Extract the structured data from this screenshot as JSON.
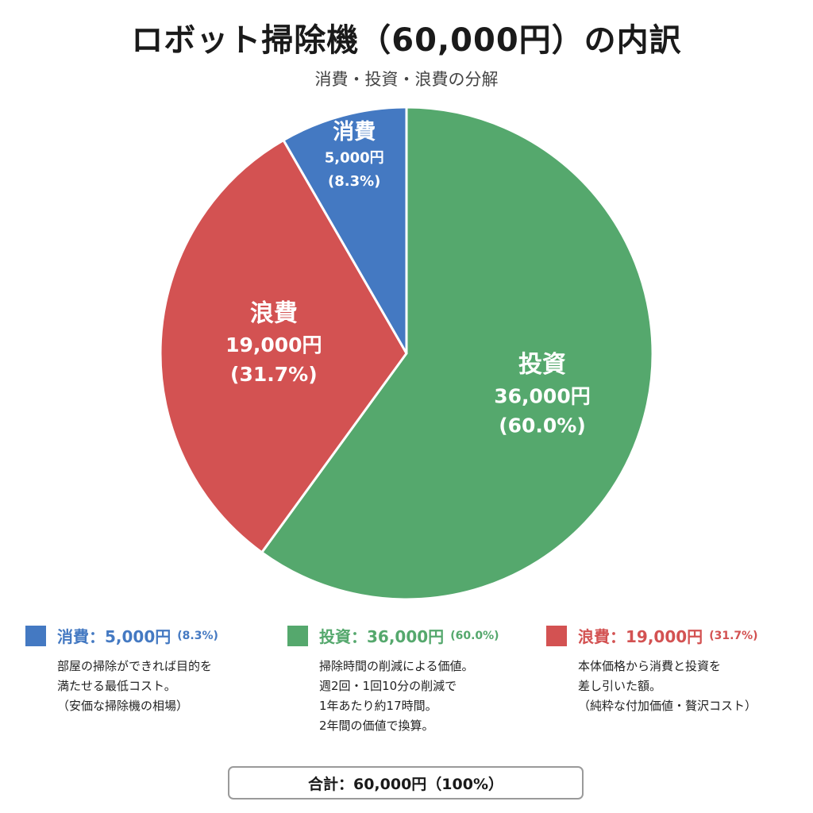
{
  "header": {
    "title": "ロボット掃除機（60,000円）の内訳",
    "subtitle": "消費・投資・浪費の分解"
  },
  "chart_data": {
    "type": "pie",
    "title": "ロボット掃除機（60,000円）の内訳",
    "subtitle": "消費・投資・浪費の分解",
    "unit": "円",
    "total": 60000,
    "start_angle_deg": 0,
    "direction": "clockwise",
    "slices": [
      {
        "name": "投資",
        "value": 36000,
        "value_label": "36,000円",
        "percent": 60.0,
        "percent_label": "(60.0%)",
        "color": "#55a86d"
      },
      {
        "name": "浪費",
        "value": 19000,
        "value_label": "19,000円",
        "percent": 31.7,
        "percent_label": "(31.7%)",
        "color": "#d35252"
      },
      {
        "name": "消費",
        "value": 5000,
        "value_label": "5,000円",
        "percent": 8.3,
        "percent_label": "(8.3%)",
        "color": "#4479c2"
      }
    ]
  },
  "legend": {
    "items": [
      {
        "name": "消費：5,000円",
        "pct": "(8.3%)",
        "color": "#4479c2",
        "lines": [
          "部屋の掃除ができれば目的を",
          "満たせる最低コスト。",
          "（安価な掃除機の相場）",
          ""
        ]
      },
      {
        "name": "投資：36,000円",
        "pct": "(60.0%)",
        "color": "#55a86d",
        "lines": [
          "掃除時間の削減による価値。",
          "週2回・1回10分の削減で",
          "1年あたり約17時間。",
          "2年間の価値で換算。"
        ]
      },
      {
        "name": "浪費：19,000円",
        "pct": "(31.7%)",
        "color": "#d35252",
        "lines": [
          "本体価格から消費と投資を",
          "差し引いた額。",
          "（純粋な付加価値・贅沢コスト）",
          ""
        ]
      }
    ]
  },
  "total": {
    "label": "合計：60,000円（100%）"
  }
}
